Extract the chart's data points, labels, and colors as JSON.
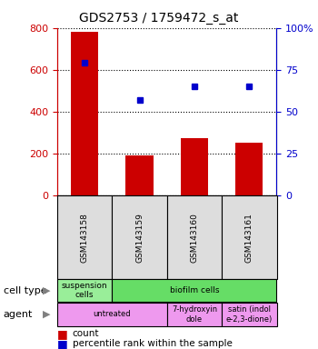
{
  "title": "GDS2753 / 1759472_s_at",
  "samples": [
    "GSM143158",
    "GSM143159",
    "GSM143160",
    "GSM143161"
  ],
  "counts": [
    780,
    190,
    275,
    250
  ],
  "percentile_ranks": [
    79,
    57,
    65,
    65
  ],
  "bar_color": "#cc0000",
  "dot_color": "#0000cc",
  "ylim_left": [
    0,
    800
  ],
  "ylim_right": [
    0,
    100
  ],
  "yticks_left": [
    0,
    200,
    400,
    600,
    800
  ],
  "yticks_right": [
    0,
    25,
    50,
    75,
    100
  ],
  "ytick_labels_left": [
    "0",
    "200",
    "400",
    "600",
    "800"
  ],
  "ytick_labels_right": [
    "0",
    "25",
    "50",
    "75",
    "100%"
  ],
  "cell_type_row": {
    "label": "cell type",
    "cells": [
      {
        "text": "suspension\ncells",
        "color": "#99ee99",
        "span": 1
      },
      {
        "text": "biofilm cells",
        "color": "#66dd66",
        "span": 3
      }
    ]
  },
  "agent_row": {
    "label": "agent",
    "cells": [
      {
        "text": "untreated",
        "color": "#ee99ee",
        "span": 2
      },
      {
        "text": "7-hydroxyin\ndole",
        "color": "#ee99ee",
        "span": 1
      },
      {
        "text": "satin (indol\ne-2,3-dione)",
        "color": "#ee99ee",
        "span": 1
      }
    ]
  },
  "legend_count_color": "#cc0000",
  "legend_dot_color": "#0000cc",
  "left_axis_color": "#cc0000",
  "right_axis_color": "#0000cc"
}
